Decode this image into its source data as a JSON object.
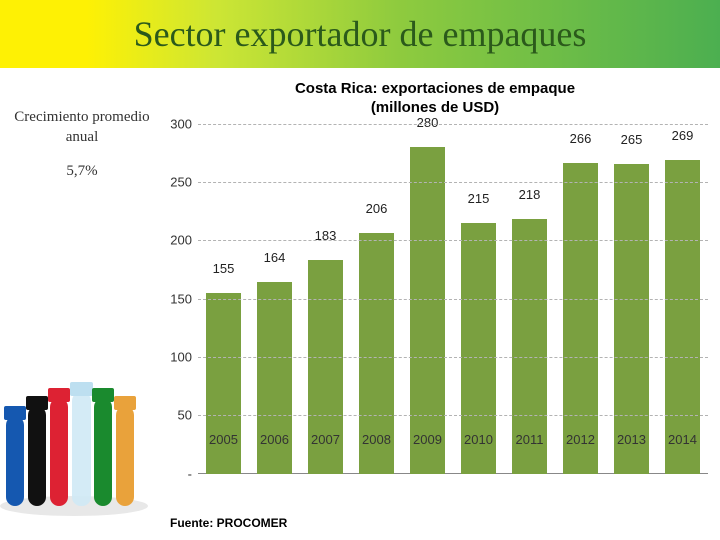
{
  "slide": {
    "title": "Sector exportador de empaques",
    "title_color": "#2b5a1b",
    "title_gradient": [
      "#fef104",
      "#cde634",
      "#8fcb3e",
      "#4caf50"
    ]
  },
  "sidebar": {
    "growth_caption_line1": "Crecimiento promedio",
    "growth_caption_line2": "anual",
    "growth_value": "5,7%"
  },
  "chart": {
    "type": "bar",
    "title_line1": "Costa Rica: exportaciones de empaque",
    "title_line2": "(millones de USD)",
    "categories": [
      "2005",
      "2006",
      "2007",
      "2008",
      "2009",
      "2010",
      "2011",
      "2012",
      "2013",
      "2014"
    ],
    "values": [
      155,
      164,
      183,
      206,
      280,
      215,
      218,
      266,
      265,
      269
    ],
    "ymin": 0,
    "ymax": 300,
    "ytick_labels": [
      "-",
      "50",
      "100",
      "150",
      "200",
      "250",
      "300"
    ],
    "ytick_values": [
      0,
      50,
      100,
      150,
      200,
      250,
      300
    ],
    "bar_color": "#7aa040",
    "grid_color": "#b3b3b3",
    "title_fontsize": 15,
    "label_fontsize": 13
  },
  "source": "Fuente: PROCOMER"
}
